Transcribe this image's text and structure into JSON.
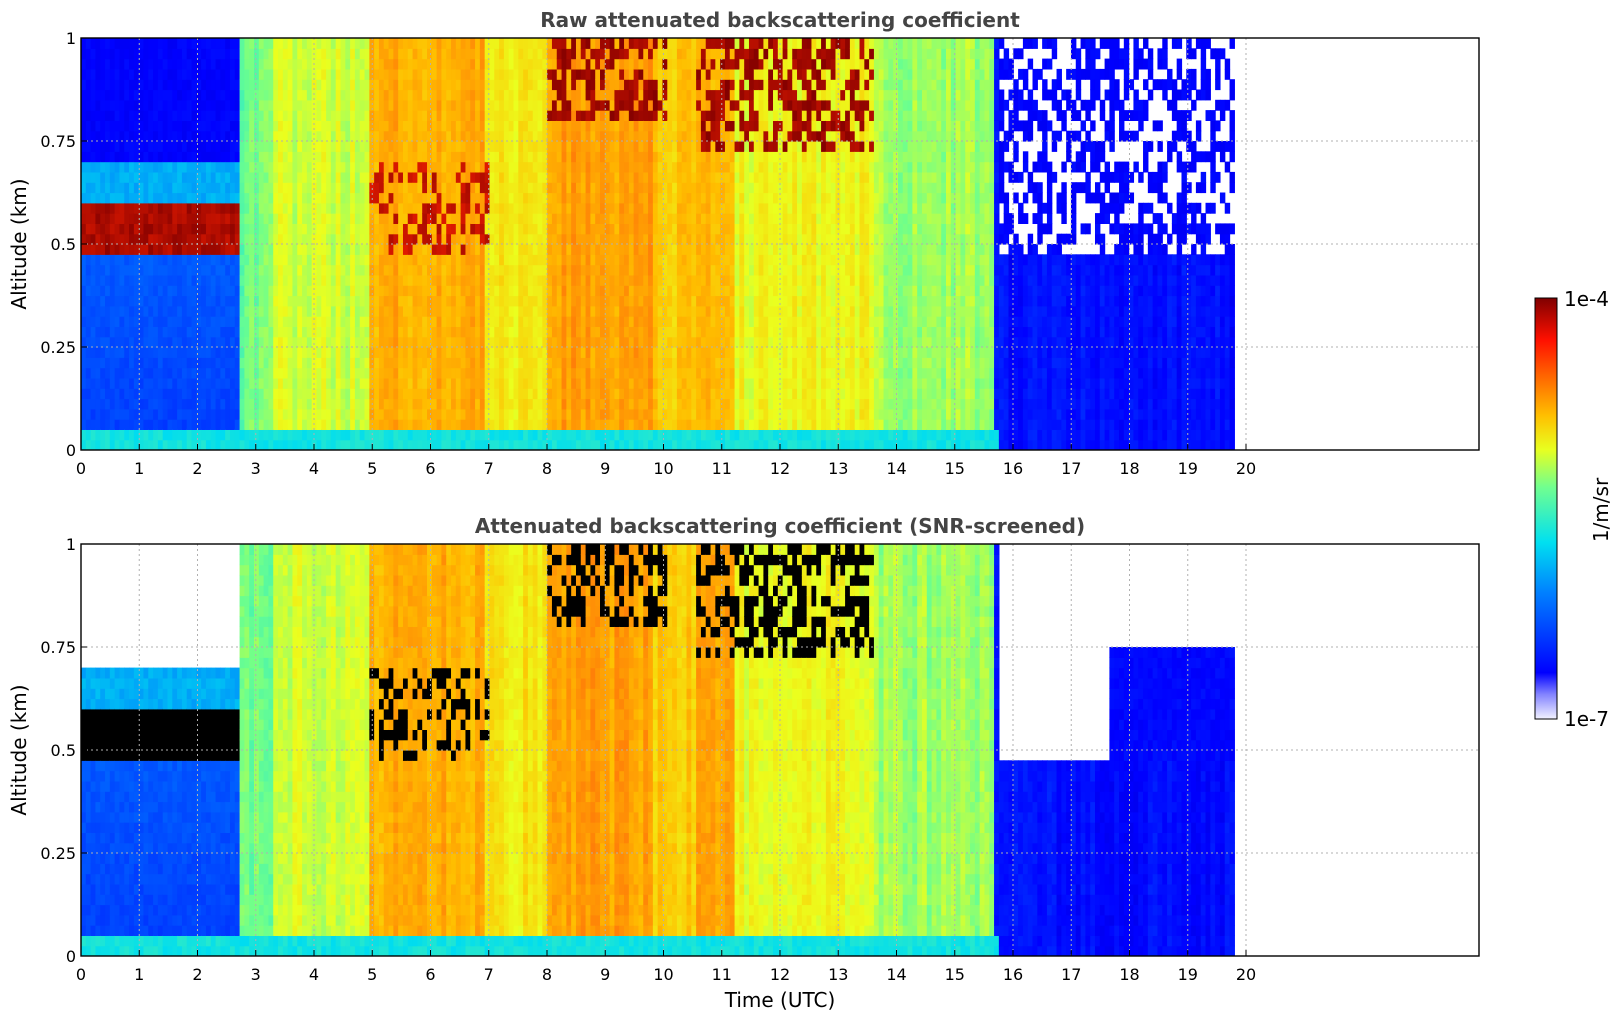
{
  "chart_data": [
    {
      "type": "heatmap",
      "title": "Raw attenuated backscattering coefficient",
      "ylabel": "Altitude (km)",
      "xlabel": "",
      "xlim": [
        0,
        24
      ],
      "ylim": [
        0,
        1
      ],
      "x_ticks": [
        0,
        1,
        2,
        3,
        4,
        5,
        6,
        7,
        8,
        9,
        10,
        11,
        12,
        13,
        14,
        15,
        16,
        17,
        18,
        19,
        20
      ],
      "y_ticks": [
        0,
        0.25,
        0.5,
        0.75,
        1
      ],
      "y_tick_labels": [
        "0",
        "0.25",
        "0.5",
        "0.75",
        "1"
      ],
      "data_extent_x": [
        0,
        19.8
      ],
      "grid": true,
      "screened": false
    },
    {
      "type": "heatmap",
      "title": "Attenuated backscattering coefficient (SNR-screened)",
      "ylabel": "Altitude (km)",
      "xlabel": "Time (UTC)",
      "xlim": [
        0,
        24
      ],
      "ylim": [
        0,
        1
      ],
      "x_ticks": [
        0,
        1,
        2,
        3,
        4,
        5,
        6,
        7,
        8,
        9,
        10,
        11,
        12,
        13,
        14,
        15,
        16,
        17,
        18,
        19,
        20
      ],
      "y_ticks": [
        0,
        0.25,
        0.5,
        0.75,
        1
      ],
      "y_tick_labels": [
        "0",
        "0.25",
        "0.5",
        "0.75",
        "1"
      ],
      "data_extent_x": [
        0,
        19.8
      ],
      "grid": true,
      "screened": true
    }
  ],
  "colorbar": {
    "label": "1/m/sr",
    "max_label": "1e-4",
    "min_label": "1e-7",
    "colormap": "jet",
    "scale": "log"
  }
}
